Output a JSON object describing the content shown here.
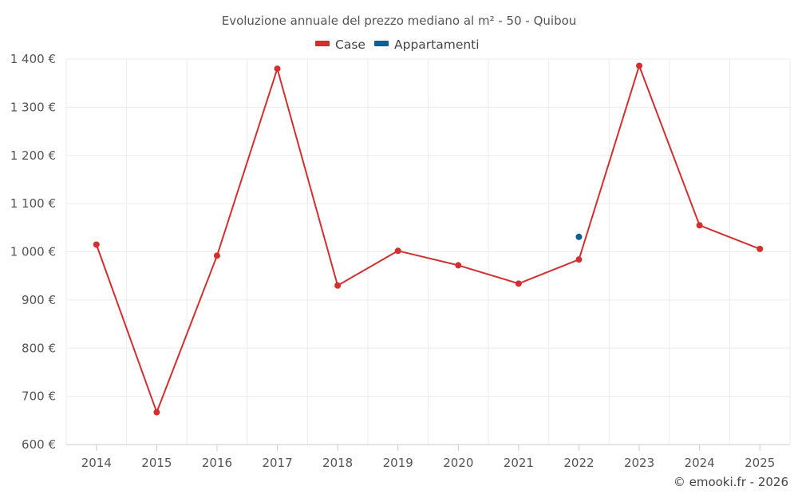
{
  "chart_data": {
    "type": "line",
    "title": "Evoluzione annuale del prezzo mediano al m² - 50 - Quibou",
    "categories": [
      "2014",
      "2015",
      "2016",
      "2017",
      "2018",
      "2019",
      "2020",
      "2021",
      "2022",
      "2023",
      "2024",
      "2025"
    ],
    "series": [
      {
        "name": "Case",
        "color": "#d32f2f",
        "values": [
          1015,
          667,
          992,
          1380,
          930,
          1002,
          972,
          934,
          984,
          1386,
          1055,
          1006
        ]
      },
      {
        "name": "Appartamenti",
        "color": "#0d5f96",
        "values": [
          null,
          null,
          null,
          null,
          null,
          null,
          null,
          null,
          1031,
          null,
          null,
          null
        ]
      }
    ],
    "ylim": [
      600,
      1400
    ],
    "yticks": [
      600,
      700,
      800,
      900,
      1000,
      1100,
      1200,
      1300,
      1400
    ],
    "ytick_labels": [
      "600 €",
      "700 €",
      "800 €",
      "900 €",
      "1 000 €",
      "1 100 €",
      "1 200 €",
      "1 300 €",
      "1 400 €"
    ],
    "xlabel": "",
    "ylabel": "",
    "grid": true,
    "legend_position": "top-center",
    "credit": "© emooki.fr - 2026"
  }
}
